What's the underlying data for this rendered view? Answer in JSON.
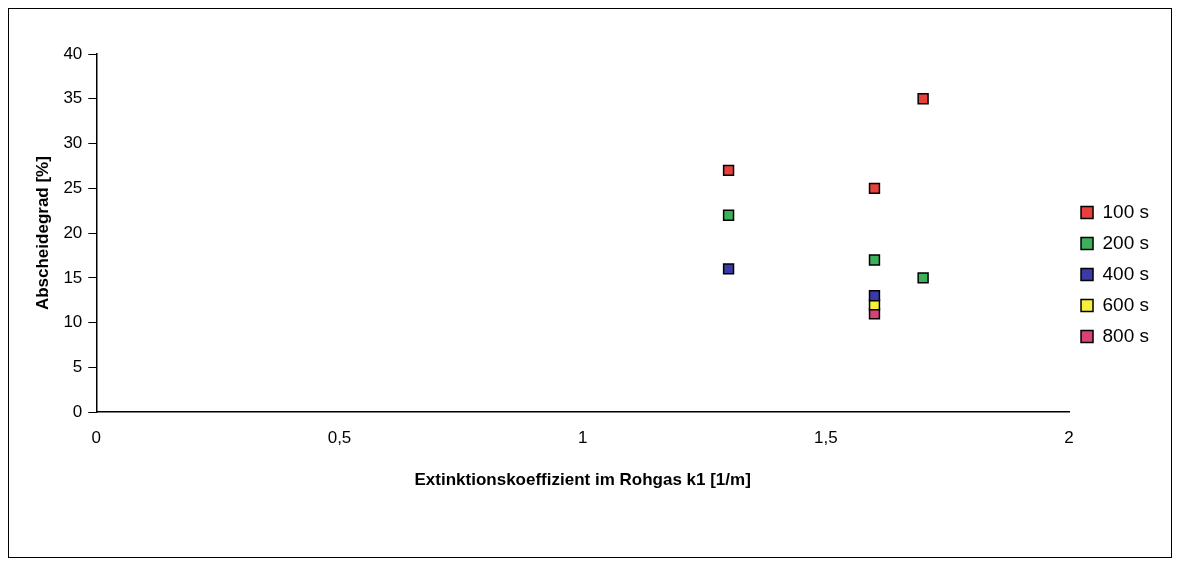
{
  "chart_data": {
    "type": "scatter",
    "xlabel": "Extinktionskoeffizient im Rohgas k1 [1/m]",
    "ylabel": "Abscheidegrad [%]",
    "xlim": [
      0,
      2
    ],
    "xticks": [
      0,
      {
        "value": 0.5,
        "label": "0,5"
      },
      1,
      {
        "value": 1.5,
        "label": "1,5"
      },
      2
    ],
    "ylim": [
      0,
      40
    ],
    "yticks": [
      0,
      5,
      10,
      15,
      20,
      25,
      30,
      35,
      40
    ],
    "grid": false,
    "legend": "right",
    "marker": "square",
    "series": [
      {
        "name": "100 s",
        "color": "#e8413c",
        "x": [
          1.3,
          1.6,
          1.7
        ],
        "values": [
          27,
          25,
          35
        ]
      },
      {
        "name": "200 s",
        "color": "#3db05a",
        "x": [
          1.3,
          1.6,
          1.7
        ],
        "values": [
          22,
          17,
          15
        ]
      },
      {
        "name": "400 s",
        "color": "#3a3aa8",
        "x": [
          1.3,
          1.6
        ],
        "values": [
          16,
          13
        ]
      },
      {
        "name": "600 s",
        "color": "#f5f03c",
        "x": [
          1.6
        ],
        "values": [
          12
        ]
      },
      {
        "name": "800 s",
        "color": "#d9417a",
        "x": [
          1.6
        ],
        "values": [
          11
        ]
      }
    ]
  }
}
